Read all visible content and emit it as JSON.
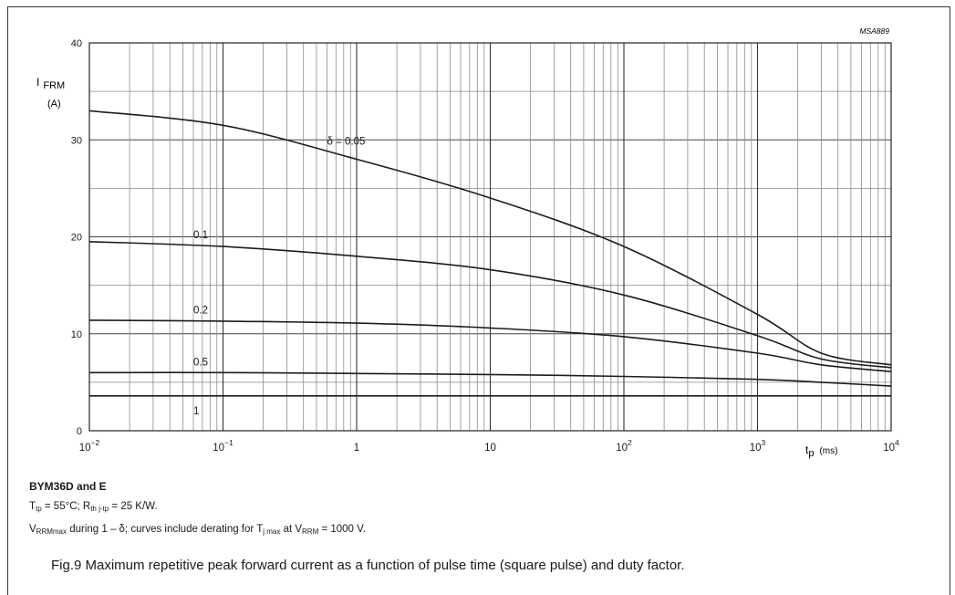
{
  "figure_code": "MSA889",
  "chart_data": {
    "type": "line",
    "title": "",
    "x_scale": "log",
    "xlim": [
      0.01,
      10000
    ],
    "ylim": [
      0,
      40
    ],
    "x_ticks": [
      0.01,
      0.1,
      1,
      10,
      100,
      1000,
      10000
    ],
    "y_ticks": [
      0,
      10,
      20,
      30,
      40
    ],
    "ylabel": {
      "symbol": "I",
      "subscript": "FRM",
      "unit": "(A)"
    },
    "xlabel": {
      "symbol": "t",
      "subscript": "p",
      "unit": "(ms)"
    },
    "grid": true,
    "legend": "curve labels on chart",
    "series": [
      {
        "name": "δ = 0.05",
        "x": [
          0.01,
          0.1,
          1,
          10,
          100,
          1000,
          3000,
          10000
        ],
        "y": [
          33.0,
          31.5,
          28.0,
          24.0,
          19.0,
          12.0,
          8.0,
          6.8
        ]
      },
      {
        "name": "0.1",
        "x": [
          0.01,
          0.1,
          1,
          10,
          100,
          1000,
          3000,
          10000
        ],
        "y": [
          19.5,
          19.0,
          18.0,
          16.6,
          14.0,
          9.8,
          7.4,
          6.5
        ]
      },
      {
        "name": "0.2",
        "x": [
          0.01,
          0.1,
          1,
          10,
          100,
          1000,
          3000,
          10000
        ],
        "y": [
          11.4,
          11.3,
          11.1,
          10.6,
          9.7,
          8.0,
          6.8,
          6.1
        ]
      },
      {
        "name": "0.5",
        "x": [
          0.01,
          0.1,
          1,
          10,
          100,
          1000,
          3000,
          10000
        ],
        "y": [
          6.0,
          6.0,
          5.9,
          5.8,
          5.6,
          5.3,
          5.0,
          4.6
        ]
      },
      {
        "name": "1",
        "x": [
          0.01,
          0.1,
          1,
          10,
          100,
          1000,
          3000,
          10000
        ],
        "y": [
          3.6,
          3.6,
          3.6,
          3.6,
          3.6,
          3.6,
          3.6,
          3.6
        ]
      }
    ]
  },
  "notes": {
    "device": "BYM36D and E",
    "t_tp_symbol": "T",
    "t_tp_sub": "tp",
    "t_tp_text": " = 55°C; R",
    "r_sub": "th j-tp",
    "r_text": " = 25 K/W.",
    "v_symbol": "V",
    "v_sub": "RRMmax",
    "v_text": " during 1 – δ; curves include derating for T",
    "tj_sub": "j max",
    "tj_text": " at V",
    "vrrm_sub": "RRM",
    "vrrm_text": " = 1000 V."
  },
  "caption": "Fig.9  Maximum repetitive peak forward current as a function of pulse time (square pulse) and duty factor."
}
